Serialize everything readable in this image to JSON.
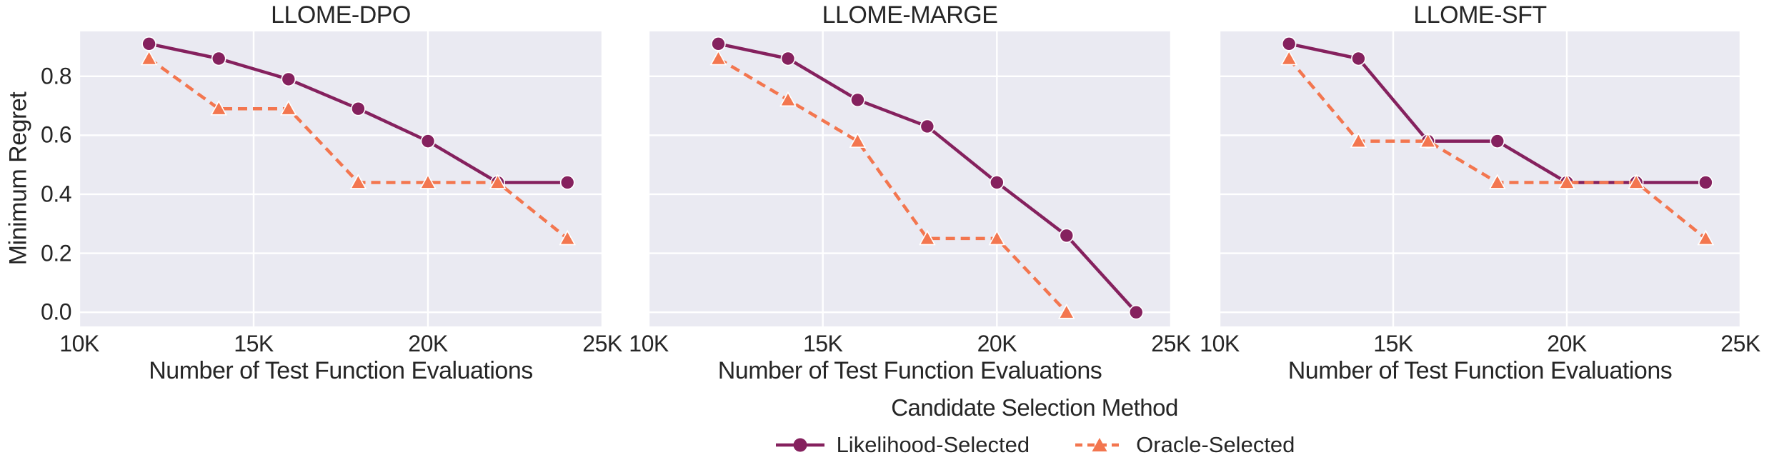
{
  "figure": {
    "ylabel": "Minimum Regret",
    "xlabel": "Number of Test Function Evaluations",
    "legend_title": "Candidate Selection Method",
    "legend": [
      {
        "label": "Likelihood-Selected",
        "color": "#85215E",
        "marker": "circle",
        "dash": "solid"
      },
      {
        "label": "Oracle-Selected",
        "color": "#F3764F",
        "marker": "triangle",
        "dash": "dashed"
      }
    ],
    "colors": {
      "figure_bg": "#FFFFFF",
      "plot_bg": "#EAEAF2",
      "grid": "#FFFFFF",
      "text": "#262626"
    }
  },
  "chart_data": [
    {
      "type": "line",
      "title": "LLOME-DPO",
      "xlabel": "Number of Test Function Evaluations",
      "ylabel": "Minimum Regret",
      "xlim": [
        10000,
        25000
      ],
      "ylim": [
        -0.048,
        0.952
      ],
      "grid": true,
      "legend_position": "bottom",
      "xticks": {
        "values": [
          10000,
          15000,
          20000,
          25000
        ],
        "labels": [
          "10K",
          "15K",
          "20K",
          "25K"
        ]
      },
      "yticks": {
        "values": [
          0.0,
          0.2,
          0.4,
          0.6,
          0.8
        ],
        "labels": [
          "0.0",
          "0.2",
          "0.4",
          "0.6",
          "0.8"
        ]
      },
      "series": [
        {
          "name": "Likelihood-Selected",
          "color": "#85215E",
          "dash": "solid",
          "marker": "circle",
          "x": [
            12000,
            14000,
            16000,
            18000,
            20000,
            22000,
            24000
          ],
          "y": [
            0.91,
            0.86,
            0.79,
            0.69,
            0.58,
            0.44,
            0.44
          ]
        },
        {
          "name": "Oracle-Selected",
          "color": "#F3764F",
          "dash": "dashed",
          "marker": "triangle",
          "x": [
            12000,
            14000,
            16000,
            18000,
            20000,
            22000,
            24000
          ],
          "y": [
            0.86,
            0.69,
            0.69,
            0.44,
            0.44,
            0.44,
            0.25
          ]
        }
      ]
    },
    {
      "type": "line",
      "title": "LLOME-MARGE",
      "xlabel": "Number of Test Function Evaluations",
      "ylabel": "Minimum Regret",
      "xlim": [
        10000,
        25000
      ],
      "ylim": [
        -0.048,
        0.952
      ],
      "grid": true,
      "legend_position": "bottom",
      "xticks": {
        "values": [
          10000,
          15000,
          20000,
          25000
        ],
        "labels": [
          "10K",
          "15K",
          "20K",
          "25K"
        ]
      },
      "yticks": {
        "values": [
          0.0,
          0.2,
          0.4,
          0.6,
          0.8
        ],
        "labels": [
          "0.0",
          "0.2",
          "0.4",
          "0.6",
          "0.8"
        ]
      },
      "series": [
        {
          "name": "Likelihood-Selected",
          "color": "#85215E",
          "dash": "solid",
          "marker": "circle",
          "x": [
            12000,
            14000,
            16000,
            18000,
            20000,
            22000,
            24000
          ],
          "y": [
            0.91,
            0.86,
            0.72,
            0.63,
            0.44,
            0.26,
            0.0
          ]
        },
        {
          "name": "Oracle-Selected",
          "color": "#F3764F",
          "dash": "dashed",
          "marker": "triangle",
          "x": [
            12000,
            14000,
            16000,
            18000,
            20000,
            22000
          ],
          "y": [
            0.86,
            0.72,
            0.58,
            0.25,
            0.25,
            0.0
          ]
        }
      ]
    },
    {
      "type": "line",
      "title": "LLOME-SFT",
      "xlabel": "Number of Test Function Evaluations",
      "ylabel": "Minimum Regret",
      "xlim": [
        10000,
        25000
      ],
      "ylim": [
        -0.048,
        0.952
      ],
      "grid": true,
      "legend_position": "bottom",
      "xticks": {
        "values": [
          10000,
          15000,
          20000,
          25000
        ],
        "labels": [
          "10K",
          "15K",
          "20K",
          "25K"
        ]
      },
      "yticks": {
        "values": [
          0.0,
          0.2,
          0.4,
          0.6,
          0.8
        ],
        "labels": [
          "0.0",
          "0.2",
          "0.4",
          "0.6",
          "0.8"
        ]
      },
      "series": [
        {
          "name": "Likelihood-Selected",
          "color": "#85215E",
          "dash": "solid",
          "marker": "circle",
          "x": [
            12000,
            14000,
            16000,
            18000,
            20000,
            22000,
            24000
          ],
          "y": [
            0.91,
            0.86,
            0.58,
            0.58,
            0.44,
            0.44,
            0.44
          ]
        },
        {
          "name": "Oracle-Selected",
          "color": "#F3764F",
          "dash": "dashed",
          "marker": "triangle",
          "x": [
            12000,
            14000,
            16000,
            18000,
            20000,
            22000,
            24000
          ],
          "y": [
            0.86,
            0.58,
            0.58,
            0.44,
            0.44,
            0.44,
            0.25
          ]
        }
      ]
    }
  ]
}
